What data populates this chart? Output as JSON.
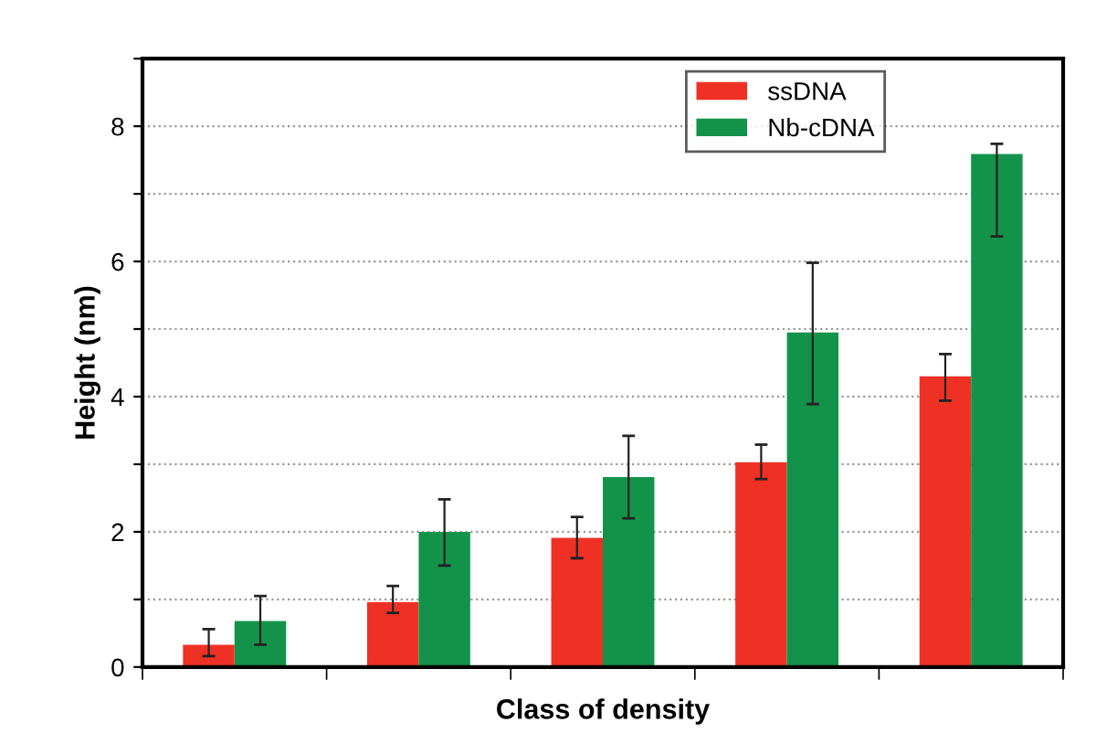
{
  "chart_data": {
    "type": "bar",
    "xlabel": "Class of density",
    "ylabel": "Height (nm)",
    "categories": [
      null,
      null,
      null,
      null,
      null
    ],
    "series": [
      {
        "name": "ssDNA",
        "color": "#ee3124",
        "values": [
          0.33,
          0.96,
          1.91,
          3.03,
          4.3
        ],
        "errors": [
          [
            0.16,
            0.56
          ],
          [
            0.8,
            1.2
          ],
          [
            1.61,
            2.22
          ],
          [
            2.78,
            3.29
          ],
          [
            3.94,
            4.63
          ]
        ]
      },
      {
        "name": "Nb-cDNA",
        "color": "#13934a",
        "values": [
          0.68,
          2.0,
          2.81,
          4.95,
          7.59
        ],
        "errors": [
          [
            0.33,
            1.05
          ],
          [
            1.5,
            2.48
          ],
          [
            2.2,
            3.42
          ],
          [
            3.89,
            5.98
          ],
          [
            6.37,
            7.74
          ]
        ]
      }
    ],
    "ylim": [
      0,
      9
    ],
    "yticks": [
      0,
      {
        "value": 1,
        "label": null
      },
      2,
      {
        "value": 3,
        "label": null
      },
      4,
      {
        "value": 5,
        "label": null
      },
      6,
      {
        "value": 7,
        "label": null
      },
      8,
      {
        "value": 9,
        "label": null
      }
    ],
    "grid": "y",
    "legend": "top right"
  }
}
